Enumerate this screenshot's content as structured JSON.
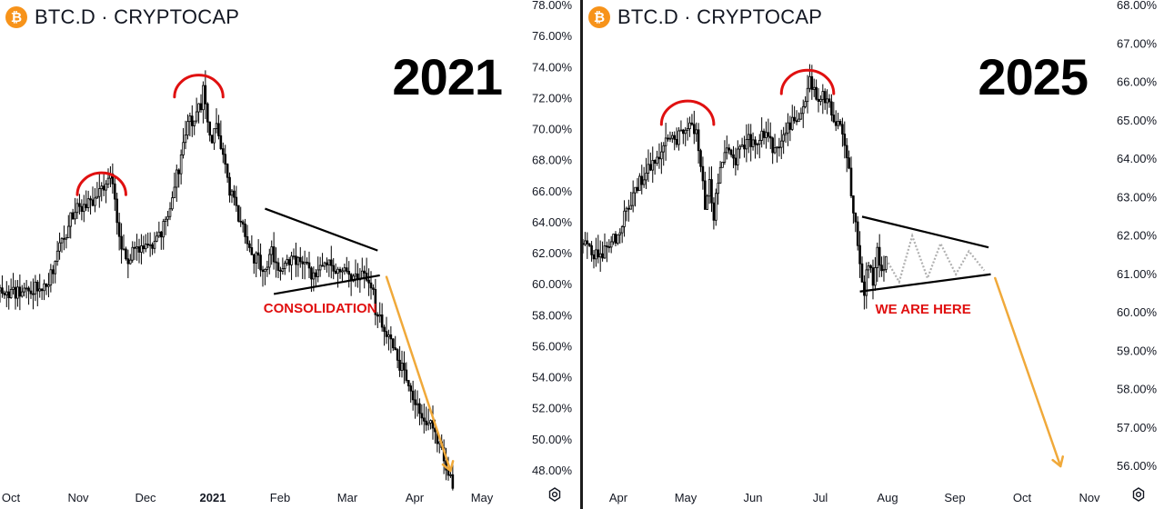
{
  "panels": [
    {
      "id": "left",
      "header": {
        "coin_icon": "bitcoin-icon",
        "symbol": "BTC.D · CRYPTOCAP"
      },
      "year_label": "2021",
      "annotation": "CONSOLIDATION"
    },
    {
      "id": "right",
      "header": {
        "coin_icon": "bitcoin-icon",
        "symbol": "BTC.D · CRYPTOCAP"
      },
      "year_label": "2025",
      "annotation": "WE ARE HERE"
    }
  ],
  "colors": {
    "coin": "#F7931A",
    "candle": "#000000",
    "arc": "#E01010",
    "arrow": "#F0A93A",
    "annotation": "#E01010",
    "projection": "#B0B0B0"
  },
  "chart_data": [
    {
      "type": "candlestick",
      "title": "BTC.D · CRYPTOCAP",
      "period_label": "2021",
      "y_axis": {
        "ylim": [
          47,
          78
        ],
        "ticks": [
          "78.00%",
          "76.00%",
          "74.00%",
          "72.00%",
          "70.00%",
          "68.00%",
          "66.00%",
          "64.00%",
          "62.00%",
          "60.00%",
          "58.00%",
          "56.00%",
          "54.00%",
          "52.00%",
          "50.00%",
          "48.00%"
        ],
        "tick_values": [
          78,
          76,
          74,
          72,
          70,
          68,
          66,
          64,
          62,
          60,
          58,
          56,
          54,
          52,
          50,
          48
        ],
        "side": "right"
      },
      "x_axis": {
        "ticks": [
          "Oct",
          "Nov",
          "Dec",
          "2021",
          "Feb",
          "Mar",
          "Apr",
          "May"
        ],
        "bold_ticks": [
          "2021"
        ],
        "range_days": [
          -23,
          215
        ]
      },
      "series": [
        {
          "kind": "close-path",
          "points": [
            [
              -23,
              59.6
            ],
            [
              -15,
              59.5
            ],
            [
              -8,
              59.8
            ],
            [
              -3,
              60.0
            ],
            [
              0,
              60.6
            ],
            [
              3,
              62.0
            ],
            [
              6,
              62.8
            ],
            [
              9,
              64.6
            ],
            [
              12,
              64.8
            ],
            [
              15,
              65.0
            ],
            [
              18,
              65.2
            ],
            [
              21,
              66.0
            ],
            [
              24,
              66.2
            ],
            [
              26,
              67.2
            ],
            [
              28,
              66.6
            ],
            [
              30,
              64.0
            ],
            [
              32,
              62.0
            ],
            [
              34,
              61.7
            ],
            [
              37,
              62.0
            ],
            [
              40,
              62.1
            ],
            [
              43,
              62.5
            ],
            [
              46,
              62.5
            ],
            [
              49,
              63.0
            ],
            [
              52,
              64.0
            ],
            [
              55,
              66.0
            ],
            [
              58,
              67.5
            ],
            [
              60,
              69.0
            ],
            [
              62,
              70.5
            ],
            [
              64,
              70.5
            ],
            [
              66,
              71.0
            ],
            [
              68,
              71.5
            ],
            [
              69,
              73.0
            ],
            [
              71,
              70.5
            ],
            [
              73,
              69.5
            ],
            [
              75,
              70.0
            ],
            [
              77,
              69.0
            ],
            [
              80,
              66.5
            ],
            [
              83,
              65.5
            ],
            [
              85,
              64.5
            ],
            [
              88,
              63.5
            ],
            [
              91,
              62.0
            ],
            [
              94,
              61.5
            ],
            [
              97,
              61.0
            ],
            [
              100,
              62.5
            ],
            [
              103,
              60.5
            ],
            [
              106,
              61.0
            ],
            [
              109,
              61.8
            ],
            [
              112,
              61.4
            ],
            [
              115,
              61.2
            ],
            [
              118,
              60.5
            ],
            [
              121,
              60.9
            ],
            [
              124,
              61.7
            ],
            [
              127,
              61.2
            ],
            [
              130,
              60.8
            ],
            [
              133,
              61.4
            ],
            [
              136,
              60.6
            ],
            [
              139,
              60.3
            ],
            [
              142,
              60.8
            ],
            [
              145,
              60.0
            ],
            [
              147,
              58.5
            ],
            [
              150,
              57.5
            ],
            [
              153,
              56.5
            ],
            [
              156,
              55.5
            ],
            [
              159,
              54.5
            ],
            [
              162,
              53.5
            ],
            [
              165,
              52.5
            ],
            [
              168,
              51.8
            ],
            [
              171,
              51.0
            ],
            [
              174,
              50.5
            ],
            [
              177,
              49.5
            ],
            [
              180,
              48.0
            ],
            [
              182,
              47.3
            ]
          ]
        }
      ],
      "annotations": [
        {
          "kind": "arc",
          "center": [
            23,
            65.8
          ],
          "radius_days": 11,
          "color": "#E01010"
        },
        {
          "kind": "arc",
          "center": [
            67,
            72.1
          ],
          "radius_days": 11,
          "color": "#E01010"
        },
        {
          "kind": "trendline",
          "from": [
            97,
            64.9
          ],
          "to": [
            148,
            62.2
          ]
        },
        {
          "kind": "trendline",
          "from": [
            101,
            59.4
          ],
          "to": [
            149,
            60.6
          ]
        },
        {
          "kind": "arrow",
          "from": [
            152,
            60.5
          ],
          "to": [
            181,
            48.0
          ],
          "color": "#F0A93A"
        },
        {
          "kind": "label",
          "text": "CONSOLIDATION",
          "at": [
            122,
            58.5
          ]
        }
      ]
    },
    {
      "type": "candlestick",
      "title": "BTC.D · CRYPTOCAP",
      "period_label": "2025",
      "y_axis": {
        "ylim": [
          55.7,
          68.1
        ],
        "ticks": [
          "68.00%",
          "67.00%",
          "66.00%",
          "65.00%",
          "64.00%",
          "63.00%",
          "62.00%",
          "61.00%",
          "60.00%",
          "59.00%",
          "58.00%",
          "57.00%",
          "56.00%"
        ],
        "tick_values": [
          68,
          67,
          66,
          65,
          64,
          63,
          62,
          61,
          60,
          59,
          58,
          57,
          56
        ],
        "side": "right"
      },
      "x_axis": {
        "ticks": [
          "Apr",
          "May",
          "Jun",
          "Jul",
          "Aug",
          "Sep",
          "Oct",
          "Nov"
        ],
        "range_days": [
          -16,
          230
        ]
      },
      "series": [
        {
          "kind": "close-path",
          "points": [
            [
              -16,
              61.8
            ],
            [
              -12,
              61.6
            ],
            [
              -8,
              61.5
            ],
            [
              -4,
              61.8
            ],
            [
              0,
              62.0
            ],
            [
              3,
              62.5
            ],
            [
              6,
              62.8
            ],
            [
              9,
              63.3
            ],
            [
              12,
              63.6
            ],
            [
              15,
              63.8
            ],
            [
              18,
              64.0
            ],
            [
              21,
              64.3
            ],
            [
              24,
              64.6
            ],
            [
              27,
              64.5
            ],
            [
              30,
              64.8
            ],
            [
              33,
              65.0
            ],
            [
              36,
              64.6
            ],
            [
              38,
              63.8
            ],
            [
              40,
              62.8
            ],
            [
              42,
              63.3
            ],
            [
              44,
              62.5
            ],
            [
              46,
              63.5
            ],
            [
              48,
              64.0
            ],
            [
              51,
              64.2
            ],
            [
              54,
              64.0
            ],
            [
              57,
              64.4
            ],
            [
              60,
              64.5
            ],
            [
              63,
              64.3
            ],
            [
              66,
              64.6
            ],
            [
              69,
              64.5
            ],
            [
              72,
              64.2
            ],
            [
              75,
              64.6
            ],
            [
              78,
              64.8
            ],
            [
              81,
              65.0
            ],
            [
              84,
              65.3
            ],
            [
              86,
              65.6
            ],
            [
              88,
              66.0
            ],
            [
              90,
              65.8
            ],
            [
              92,
              65.4
            ],
            [
              94,
              65.7
            ],
            [
              96,
              65.5
            ],
            [
              98,
              65.2
            ],
            [
              100,
              65.0
            ],
            [
              103,
              64.6
            ],
            [
              105,
              64.0
            ],
            [
              107,
              63.2
            ],
            [
              109,
              62.2
            ],
            [
              111,
              61.2
            ],
            [
              113,
              60.6
            ],
            [
              115,
              61.3
            ],
            [
              117,
              60.8
            ],
            [
              119,
              61.6
            ],
            [
              121,
              61.0
            ],
            [
              123,
              61.3
            ]
          ]
        }
      ],
      "projection": [
        [
          124,
          61.3
        ],
        [
          129,
          60.8
        ],
        [
          135,
          62.0
        ],
        [
          142,
          60.9
        ],
        [
          148,
          61.8
        ],
        [
          155,
          61.0
        ],
        [
          161,
          61.6
        ],
        [
          168,
          61.1
        ]
      ],
      "annotations": [
        {
          "kind": "arc",
          "center": [
            32,
            64.9
          ],
          "radius_days": 12,
          "color": "#E01010"
        },
        {
          "kind": "arc",
          "center": [
            87,
            65.7
          ],
          "radius_days": 12,
          "color": "#E01010"
        },
        {
          "kind": "trendline",
          "from": [
            112,
            62.5
          ],
          "to": [
            170,
            61.7
          ]
        },
        {
          "kind": "trendline",
          "from": [
            111,
            60.55
          ],
          "to": [
            171,
            61.0
          ]
        },
        {
          "kind": "arrow",
          "from": [
            173,
            60.9
          ],
          "to": [
            203,
            56.0
          ],
          "color": "#F0A93A"
        },
        {
          "kind": "label",
          "text": "WE ARE HERE",
          "at": [
            140,
            60.1
          ]
        }
      ]
    }
  ]
}
